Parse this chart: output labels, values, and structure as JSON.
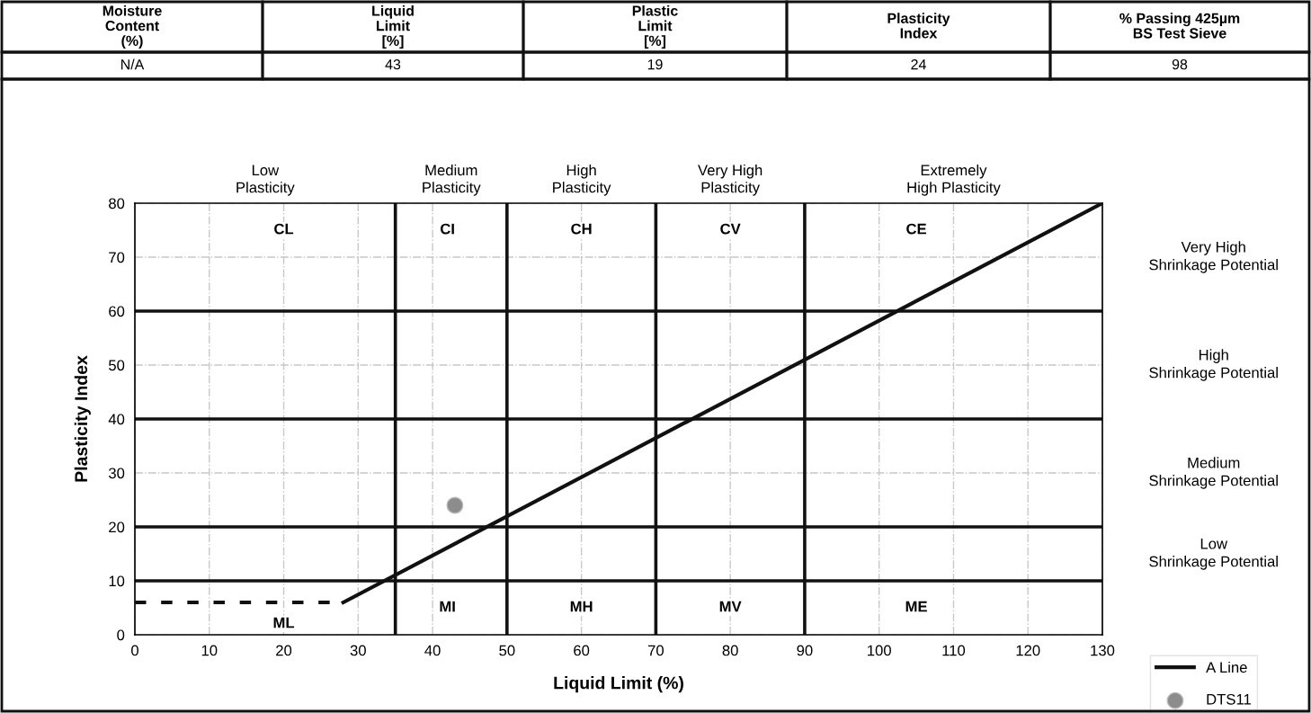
{
  "chart_data": {
    "type": "line",
    "xlabel": "Liquid Limit (%)",
    "ylabel": "Plasticity Index",
    "xlim": [
      0,
      130
    ],
    "ylim": [
      0,
      80
    ],
    "xticks": [
      0,
      10,
      20,
      30,
      40,
      50,
      60,
      70,
      80,
      90,
      100,
      110,
      120,
      130
    ],
    "yticks": [
      0,
      10,
      20,
      30,
      40,
      50,
      60,
      70,
      80
    ],
    "grid": true,
    "legend": "bottom right",
    "series": [
      {
        "name": "A Line",
        "color": "#111111",
        "x": [
          28,
          130
        ],
        "values": [
          6,
          80
        ]
      },
      {
        "color": "#111111",
        "line_style": "dashed",
        "x": [
          0,
          28
        ],
        "values": [
          6,
          6
        ]
      },
      {
        "name": "DTS11",
        "type": "scatter",
        "marker": "circle",
        "color": "#8c8c8c",
        "x": [
          43
        ],
        "values": [
          24
        ]
      }
    ],
    "ref_lines": [
      {
        "axis": "x",
        "value": 35,
        "color": "#111111"
      },
      {
        "axis": "x",
        "value": 50,
        "color": "#111111"
      },
      {
        "axis": "x",
        "value": 70,
        "color": "#111111"
      },
      {
        "axis": "x",
        "value": 90,
        "color": "#111111"
      },
      {
        "axis": "y",
        "value": 10,
        "color": "#111111"
      },
      {
        "axis": "y",
        "value": 20,
        "color": "#111111"
      },
      {
        "axis": "y",
        "value": 40,
        "color": "#111111"
      },
      {
        "axis": "y",
        "value": 60,
        "color": "#111111"
      }
    ],
    "annotations": [
      "Moisture\nContent\n(%)",
      "Liquid\nLimit\n[%]",
      "Plastic\nLimit\n[%]",
      "Plasticity\nIndex",
      "% Passing 425µm\nBS Test Sieve",
      "N/A",
      "43",
      "19",
      "24",
      "98",
      "Low\nPlasticity",
      "Medium\nPlasticity",
      "High\nPlasticity",
      "Very High\nPlasticity",
      "Extremely\nHigh Plasticity",
      "Very High\nShrinkage Potential",
      "High\nShrinkage Potential",
      "Medium\nShrinkage Potential",
      "Low\nShrinkage Potential",
      {
        "text": "CL",
        "x": 20,
        "y": 75
      },
      {
        "text": "CI",
        "x": 42,
        "y": 75
      },
      {
        "text": "CH",
        "x": 60,
        "y": 75
      },
      {
        "text": "CV",
        "x": 80,
        "y": 75
      },
      {
        "text": "CE",
        "x": 105,
        "y": 75
      },
      {
        "text": "ML",
        "x": 20,
        "y": 2
      },
      {
        "text": "MI",
        "x": 42,
        "y": 5
      },
      {
        "text": "MH",
        "x": 60,
        "y": 5
      },
      {
        "text": "MV",
        "x": 80,
        "y": 5
      },
      {
        "text": "ME",
        "x": 105,
        "y": 5
      }
    ]
  }
}
